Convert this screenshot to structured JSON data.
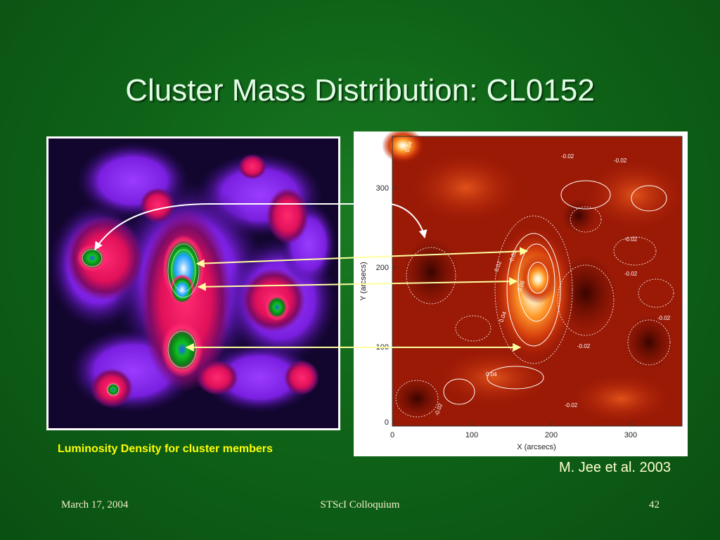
{
  "slide": {
    "title": "Cluster Mass Distribution: CL0152",
    "caption": "Luminosity Density for cluster members",
    "credit": "M. Jee et al. 2003"
  },
  "footer": {
    "date": "March 17, 2004",
    "event": "STScI Colloquium",
    "page_number": "42"
  },
  "mass_map": {
    "x_axis_label": "X (arcsecs)",
    "y_axis_label": "Y (arcsecs)",
    "x_ticks": [
      "0",
      "100",
      "200",
      "300"
    ],
    "y_ticks": [
      "0",
      "100",
      "200",
      "300"
    ],
    "contour_labels": [
      "0.04",
      "-0.02",
      "-0.02",
      "-0.02",
      "0.02",
      "0.04",
      "-0.02",
      "-0.02",
      "-0.02",
      "0.04",
      "-0.02",
      "-0.02",
      "-0.02",
      "0.06"
    ]
  },
  "colors": {
    "background": "#0f6418",
    "title": "#e2ffe6",
    "caption": "#ffff00",
    "arrow": "#ffffa0"
  }
}
